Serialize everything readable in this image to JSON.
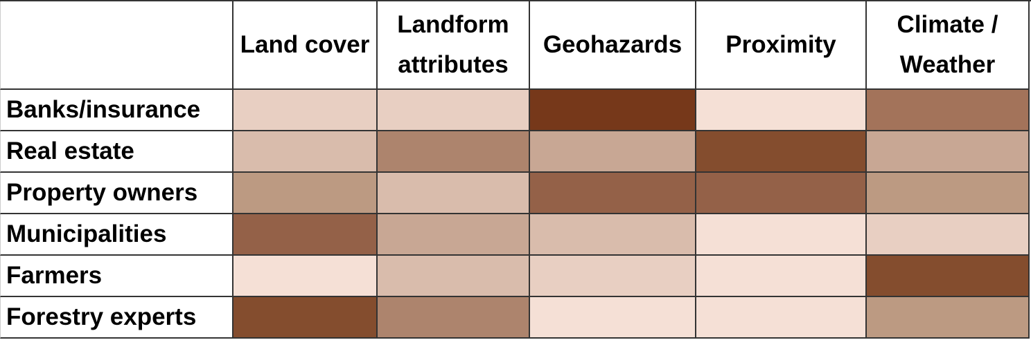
{
  "table": {
    "columns": [
      "Land cover",
      "Landform attributes",
      "Geohazards",
      "Proximity",
      "Climate / Weather"
    ],
    "rows": [
      {
        "label": "Banks/insurance",
        "colors": [
          "#e8cfc2",
          "#e8cfc2",
          "#76381a",
          "#f5e0d6",
          "#a3735a"
        ]
      },
      {
        "label": "Real estate",
        "colors": [
          "#d9bcac",
          "#ad846d",
          "#c8a794",
          "#844d2e",
          "#c8a794"
        ]
      },
      {
        "label": "Property owners",
        "colors": [
          "#bc9a82",
          "#d9bcac",
          "#946148",
          "#946148",
          "#bc9a82"
        ]
      },
      {
        "label": "Municipalities",
        "colors": [
          "#946148",
          "#c8a794",
          "#d9bcac",
          "#f5e0d6",
          "#e8cfc2"
        ]
      },
      {
        "label": "Farmers",
        "colors": [
          "#f5e0d6",
          "#d9bcac",
          "#e8cfc2",
          "#f5e0d6",
          "#844d2e"
        ]
      },
      {
        "label": "Forestry experts",
        "colors": [
          "#844d2e",
          "#ad846d",
          "#f5e0d6",
          "#f5e0d6",
          "#bc9a82"
        ]
      }
    ]
  }
}
